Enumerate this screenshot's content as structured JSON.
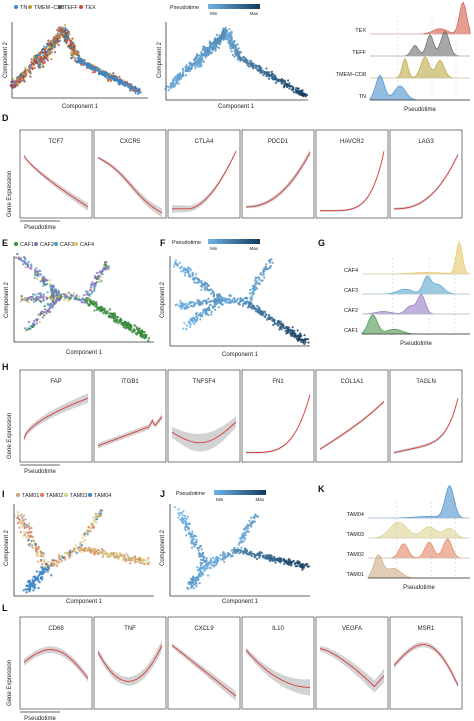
{
  "colors": {
    "tn": "#3a86c8",
    "tmem": "#b7a135",
    "teff": "#5d5d5d",
    "tex": "#d04a3a",
    "caf1": "#3a8a3c",
    "caf2": "#8a6fc0",
    "caf3": "#4aa0c8",
    "caf4": "#e6c35a",
    "tam01": "#c9a27a",
    "tam02": "#e07a55",
    "tam03": "#d8cf86",
    "tam04": "#3a86c8",
    "pt_dark": "#123a5c",
    "pt_light": "#6fb3e6",
    "curve": "#d63a3a",
    "ribbon": "#c8c8c8"
  },
  "panels": {
    "D": "D",
    "E": "E",
    "F": "F",
    "G": "G",
    "H": "H",
    "I": "I",
    "J": "J",
    "K": "K",
    "L": "L"
  },
  "axes": {
    "component1": "Component 1",
    "component2": "Component 2",
    "pseudotime": "Pseudotime",
    "gene_expression": "Gene Expression"
  },
  "legends": {
    "row1": [
      "TN",
      "TMEM−CD8",
      "TEFF",
      "TEX"
    ],
    "row2": [
      "CAF1",
      "CAF2",
      "CAF3",
      "CAF4"
    ],
    "row3": [
      "TAM01",
      "TAM02",
      "TAM03",
      "TAM04"
    ],
    "pseudotime": "Pseudotime",
    "min": "Min",
    "max": "Max"
  },
  "ridge_labels": {
    "row1": [
      "TEX",
      "TEFF",
      "TMEM−CD8",
      "TN"
    ],
    "row2": [
      "CAF4",
      "CAF3",
      "CAF2",
      "CAF1"
    ],
    "row3": [
      "TAM04",
      "TAM03",
      "TAM02",
      "TAM01"
    ]
  },
  "genes": {
    "D": [
      "TCF7",
      "CXCR5",
      "CTLA4",
      "PDCD1",
      "HAVCR2",
      "LAG3"
    ],
    "H": [
      "FAP",
      "ITGB1",
      "TNFSF4",
      "FN1",
      "COL1A1",
      "TAGLN"
    ],
    "L": [
      "CD68",
      "TNF",
      "CXCL9",
      "IL10",
      "VEGFA",
      "MSR1"
    ]
  }
}
